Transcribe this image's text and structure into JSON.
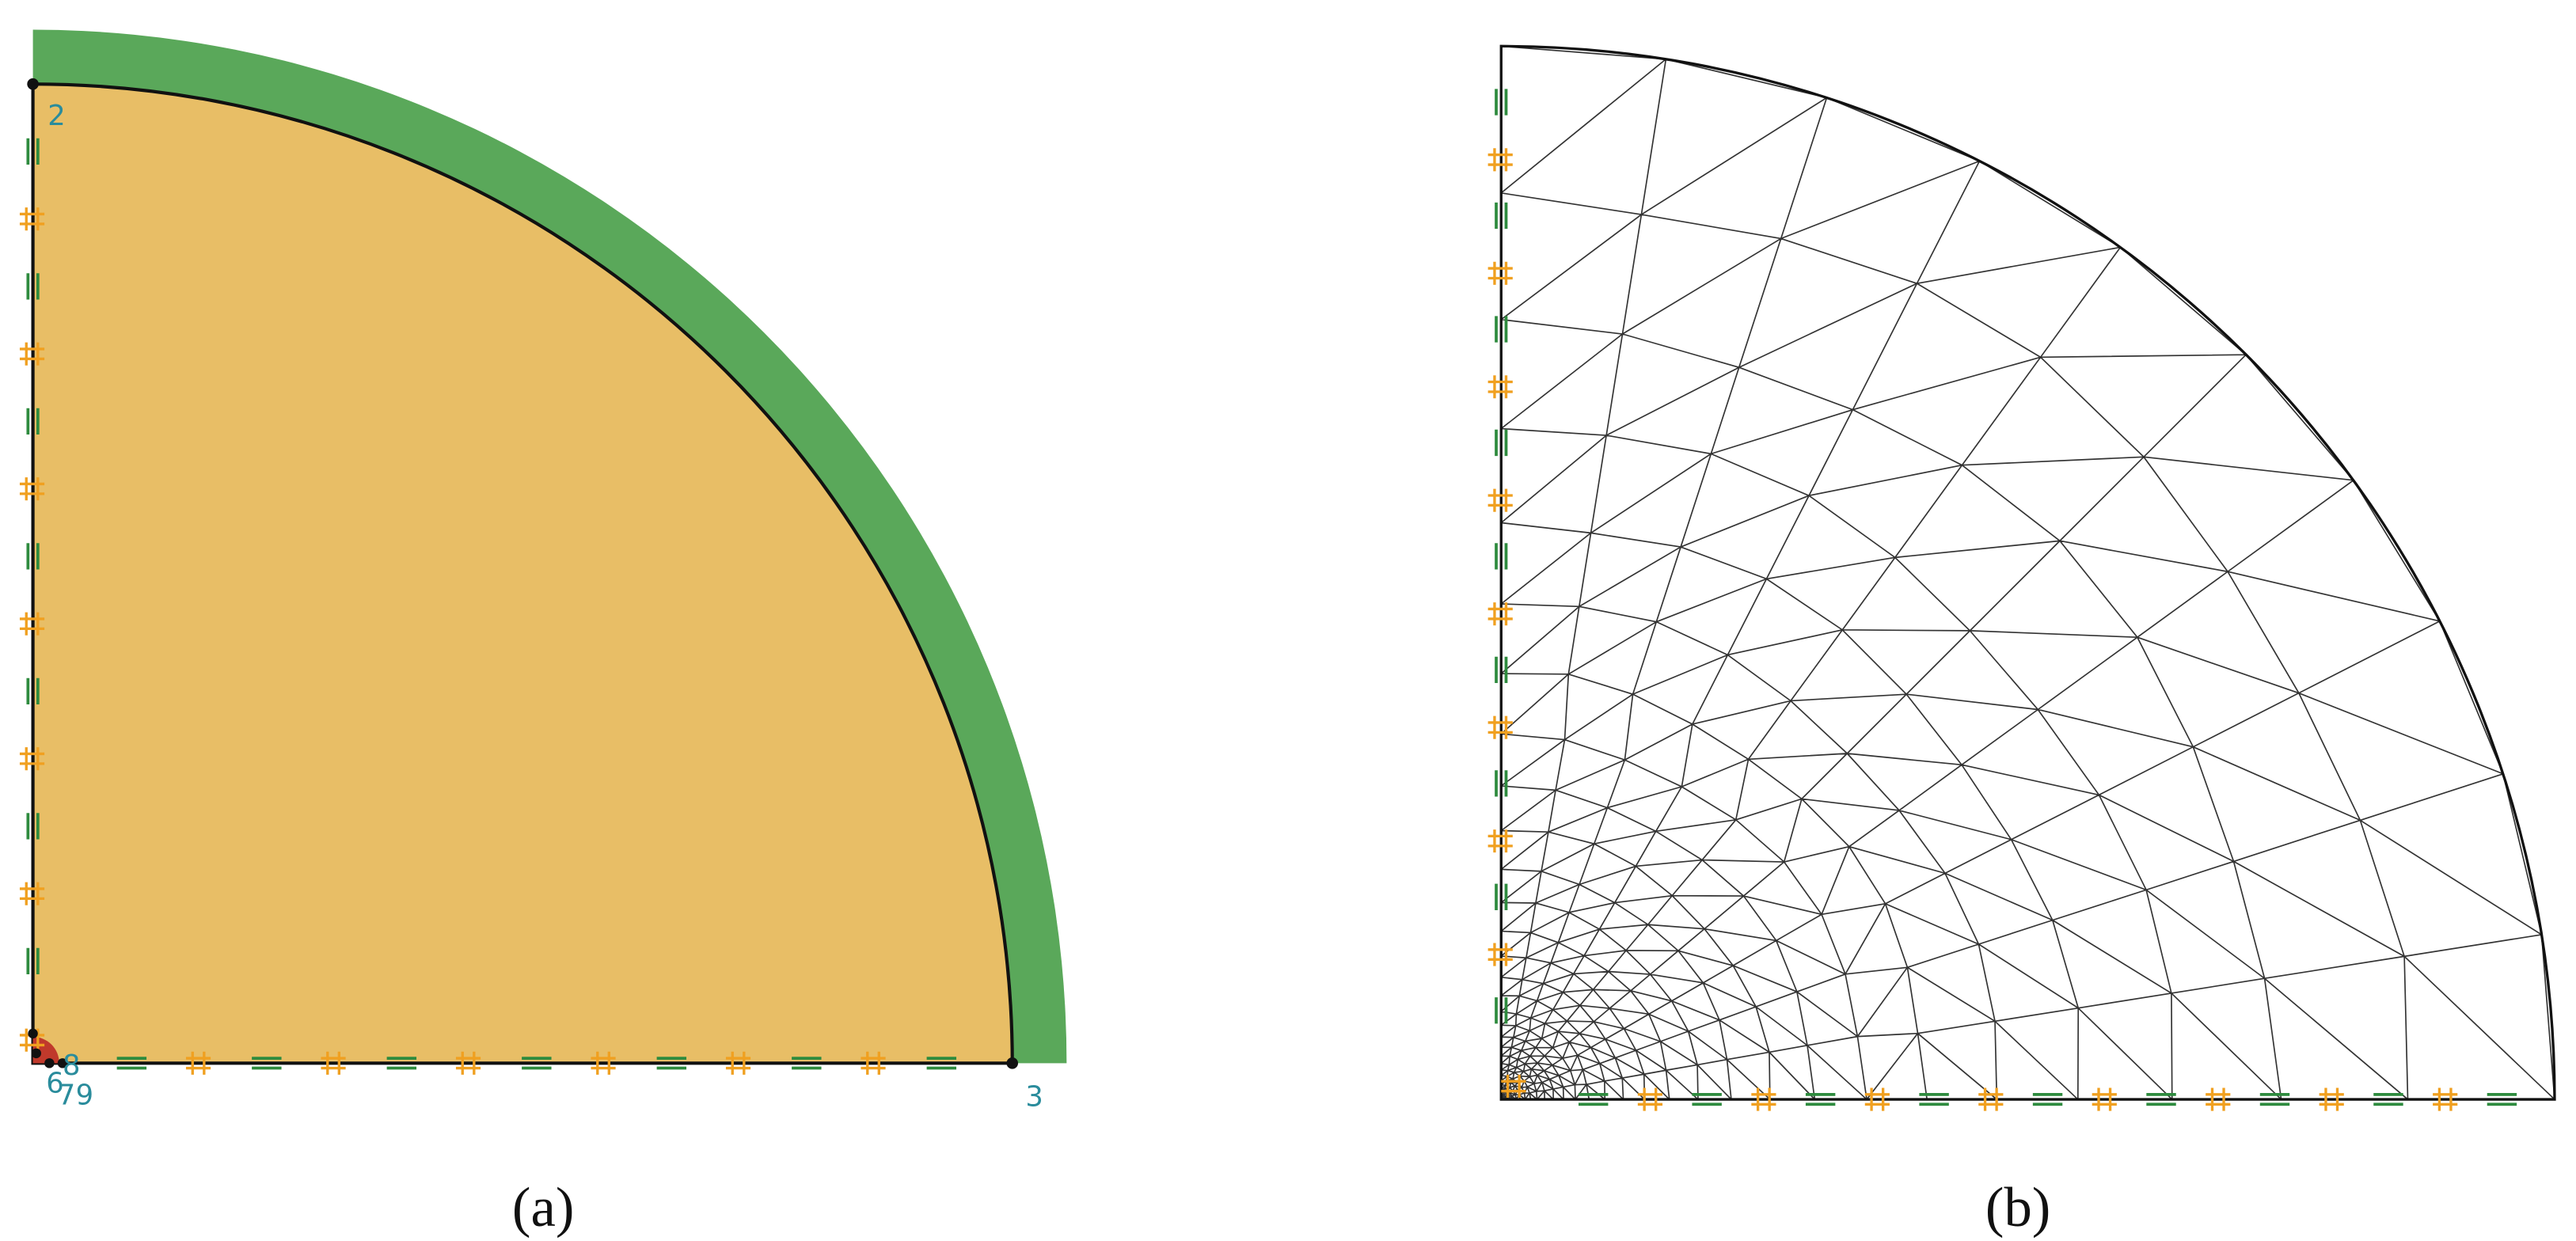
{
  "panel_a": {
    "caption": "(a)",
    "nodes": [
      {
        "label": "2"
      },
      {
        "label": "3"
      },
      {
        "label": "6"
      },
      {
        "label": "7"
      },
      {
        "label": "8"
      },
      {
        "label": "9"
      }
    ]
  },
  "panel_b": {
    "caption": "(b)"
  }
}
